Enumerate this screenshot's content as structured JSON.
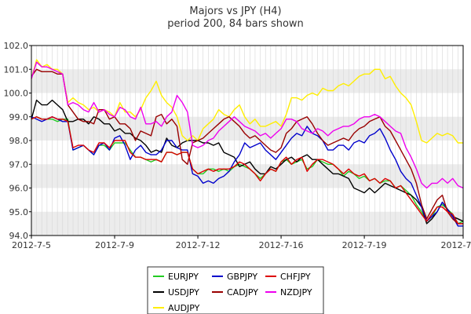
{
  "chart_data": {
    "type": "line",
    "title": "Majors vs JPY (H4)",
    "subtitle": "period 200, 84 bars shown",
    "xlabel": "",
    "ylabel": "",
    "ylim": [
      94.0,
      102.0
    ],
    "yticks": [
      "94.0",
      "95.0",
      "96.0",
      "97.0",
      "98.0",
      "99.0",
      "100.0",
      "101.0",
      "102.0"
    ],
    "xtick_labels": [
      "2012-7-5",
      "2012-7-9",
      "2012-7-12",
      "2012-7-16",
      "2012-7-19",
      "2012-7-23"
    ],
    "xtick_index": [
      0,
      16,
      32,
      48,
      64,
      83
    ],
    "bars": 84,
    "grid": true,
    "legend_position": "bottom",
    "series": [
      {
        "name": "EURJPY",
        "color": "#22cc22",
        "values": [
          98.9,
          99.0,
          98.9,
          98.9,
          98.9,
          98.8,
          98.9,
          98.9,
          97.6,
          97.7,
          97.8,
          97.6,
          97.4,
          97.8,
          97.8,
          97.6,
          97.9,
          97.9,
          97.9,
          97.6,
          97.3,
          97.3,
          97.2,
          97.1,
          97.2,
          97.1,
          97.5,
          97.5,
          97.4,
          97.5,
          97.5,
          96.8,
          96.6,
          96.6,
          96.8,
          96.8,
          96.7,
          96.8,
          96.7,
          96.9,
          97.0,
          96.9,
          96.8,
          96.6,
          96.4,
          96.6,
          96.8,
          96.7,
          97.1,
          97.2,
          97.0,
          97.1,
          97.2,
          96.8,
          96.9,
          97.2,
          97.1,
          97.0,
          97.0,
          96.8,
          96.5,
          96.7,
          96.6,
          96.4,
          96.5,
          96.3,
          96.4,
          96.2,
          96.3,
          96.3,
          96.0,
          96.1,
          95.9,
          95.7,
          95.3,
          95.0,
          94.6,
          94.8,
          95.2,
          95.3,
          95.1,
          94.9,
          94.5,
          94.6
        ]
      },
      {
        "name": "USDJPY",
        "color": "#000000",
        "values": [
          98.9,
          99.7,
          99.5,
          99.5,
          99.7,
          99.5,
          99.3,
          98.8,
          98.8,
          98.9,
          98.9,
          98.7,
          99.0,
          98.9,
          98.7,
          98.7,
          98.4,
          98.5,
          98.3,
          98.3,
          98.1,
          98.0,
          97.8,
          97.5,
          97.6,
          97.5,
          98.1,
          97.8,
          97.7,
          97.9,
          98.0,
          98.0,
          98.0,
          97.9,
          97.9,
          97.8,
          97.9,
          97.5,
          97.4,
          97.3,
          96.9,
          97.0,
          97.1,
          96.8,
          96.6,
          96.6,
          96.9,
          96.8,
          97.0,
          97.2,
          97.3,
          97.1,
          97.3,
          97.4,
          97.2,
          97.2,
          97.0,
          96.8,
          96.6,
          96.6,
          96.5,
          96.4,
          96.0,
          95.9,
          95.8,
          96.0,
          95.8,
          96.0,
          96.2,
          96.1,
          96.0,
          95.9,
          95.8,
          95.7,
          95.5,
          95.2,
          94.5,
          94.7,
          95.0,
          95.4,
          95.1,
          94.8,
          94.7,
          94.6
        ]
      },
      {
        "name": "AUDJPY",
        "color": "#ffee00",
        "values": [
          100.6,
          101.4,
          101.1,
          101.2,
          101.0,
          101.0,
          100.8,
          99.6,
          99.8,
          99.6,
          99.5,
          99.3,
          99.4,
          99.2,
          99.3,
          99.2,
          99.0,
          99.6,
          99.2,
          99.2,
          99.0,
          99.3,
          99.8,
          100.1,
          100.5,
          99.9,
          99.6,
          99.4,
          99.0,
          98.2,
          98.0,
          98.2,
          98.0,
          98.5,
          98.7,
          98.9,
          99.3,
          99.1,
          99.0,
          99.3,
          99.5,
          99.0,
          98.7,
          98.9,
          98.6,
          98.6,
          98.7,
          98.8,
          98.6,
          99.1,
          99.8,
          99.8,
          99.7,
          99.9,
          100.0,
          99.9,
          100.2,
          100.1,
          100.1,
          100.3,
          100.4,
          100.3,
          100.5,
          100.7,
          100.8,
          100.8,
          101.0,
          101.0,
          100.6,
          100.7,
          100.3,
          100.0,
          99.8,
          99.5,
          98.8,
          98.0,
          97.9,
          98.1,
          98.3,
          98.2,
          98.3,
          98.2,
          97.9,
          97.9
        ]
      },
      {
        "name": "GBPJPY",
        "color": "#0000cc",
        "values": [
          99.0,
          98.9,
          98.8,
          98.9,
          99.0,
          98.9,
          98.8,
          98.8,
          97.6,
          97.7,
          97.8,
          97.6,
          97.4,
          97.8,
          97.9,
          97.6,
          98.1,
          98.2,
          97.8,
          97.2,
          97.6,
          97.8,
          97.5,
          97.4,
          97.4,
          97.6,
          98.0,
          98.0,
          97.7,
          97.6,
          97.6,
          96.6,
          96.5,
          96.2,
          96.3,
          96.2,
          96.4,
          96.5,
          96.7,
          97.1,
          97.4,
          97.9,
          97.7,
          97.8,
          97.9,
          97.6,
          97.4,
          97.2,
          97.5,
          97.8,
          98.1,
          98.3,
          98.2,
          98.6,
          98.3,
          98.2,
          98.0,
          97.6,
          97.6,
          97.8,
          97.8,
          97.6,
          97.9,
          98.0,
          97.9,
          98.2,
          98.3,
          98.5,
          98.1,
          97.6,
          97.2,
          96.7,
          96.4,
          96.2,
          95.7,
          95.2,
          94.6,
          94.8,
          95.0,
          95.4,
          95.1,
          94.8,
          94.4,
          94.4
        ]
      },
      {
        "name": "CADJPY",
        "color": "#990000",
        "values": [
          100.7,
          101.0,
          100.9,
          100.9,
          100.9,
          100.8,
          100.8,
          99.5,
          99.2,
          98.9,
          98.8,
          98.8,
          98.7,
          99.3,
          99.3,
          98.9,
          99.0,
          98.7,
          98.7,
          98.5,
          98.0,
          98.4,
          98.3,
          98.2,
          99.0,
          99.1,
          98.7,
          98.9,
          98.6,
          97.2,
          97.0,
          97.9,
          98.0,
          98.1,
          98.3,
          98.5,
          98.7,
          98.9,
          99.0,
          98.8,
          98.6,
          98.3,
          98.1,
          98.2,
          98.0,
          97.8,
          97.6,
          97.5,
          97.7,
          98.3,
          98.5,
          98.8,
          98.9,
          99.0,
          98.7,
          98.3,
          98.0,
          97.8,
          97.9,
          98.0,
          98.1,
          98.0,
          98.3,
          98.5,
          98.6,
          98.8,
          98.9,
          99.0,
          98.6,
          98.4,
          98.0,
          97.6,
          97.2,
          96.8,
          96.2,
          95.3,
          94.7,
          95.1,
          95.5,
          95.7,
          95.0,
          94.7,
          94.5,
          94.5
        ]
      },
      {
        "name": "CHFJPY",
        "color": "#dd0000",
        "values": [
          98.9,
          99.0,
          98.9,
          98.9,
          99.0,
          98.9,
          98.9,
          98.8,
          97.7,
          97.8,
          97.8,
          97.6,
          97.5,
          97.9,
          97.9,
          97.7,
          98.0,
          98.0,
          98.0,
          97.5,
          97.3,
          97.3,
          97.2,
          97.2,
          97.2,
          97.1,
          97.5,
          97.5,
          97.4,
          97.5,
          97.5,
          96.8,
          96.6,
          96.7,
          96.8,
          96.7,
          96.8,
          96.8,
          96.8,
          96.9,
          97.1,
          97.0,
          96.8,
          96.6,
          96.3,
          96.6,
          96.8,
          96.7,
          97.1,
          97.3,
          97.0,
          97.2,
          97.3,
          96.7,
          97.0,
          97.2,
          97.2,
          97.1,
          97.0,
          96.8,
          96.6,
          96.8,
          96.6,
          96.5,
          96.6,
          96.3,
          96.4,
          96.2,
          96.4,
          96.3,
          96.0,
          96.1,
          95.8,
          95.5,
          95.2,
          94.9,
          94.6,
          94.9,
          95.2,
          95.2,
          95.0,
          94.9,
          94.5,
          94.5
        ]
      },
      {
        "name": "NZDJPY",
        "color": "#ee00ee",
        "values": [
          100.6,
          101.3,
          101.1,
          101.1,
          101.0,
          100.9,
          100.8,
          99.5,
          99.6,
          99.5,
          99.3,
          99.2,
          99.6,
          99.2,
          99.3,
          99.1,
          99.0,
          99.4,
          99.3,
          99.0,
          98.9,
          99.4,
          98.7,
          98.7,
          98.8,
          98.6,
          99.0,
          99.2,
          99.9,
          99.6,
          99.2,
          97.8,
          97.7,
          97.8,
          98.0,
          98.1,
          98.4,
          98.6,
          98.8,
          99.0,
          98.8,
          98.6,
          98.5,
          98.4,
          98.2,
          98.3,
          98.1,
          98.3,
          98.5,
          98.9,
          98.9,
          98.8,
          98.5,
          98.4,
          98.3,
          98.5,
          98.4,
          98.2,
          98.4,
          98.5,
          98.6,
          98.6,
          98.7,
          98.9,
          99.0,
          99.0,
          99.1,
          99.0,
          98.8,
          98.6,
          98.4,
          98.3,
          97.7,
          97.3,
          96.8,
          96.2,
          96.0,
          96.2,
          96.2,
          96.4,
          96.2,
          96.4,
          96.1,
          96.0
        ]
      }
    ]
  }
}
